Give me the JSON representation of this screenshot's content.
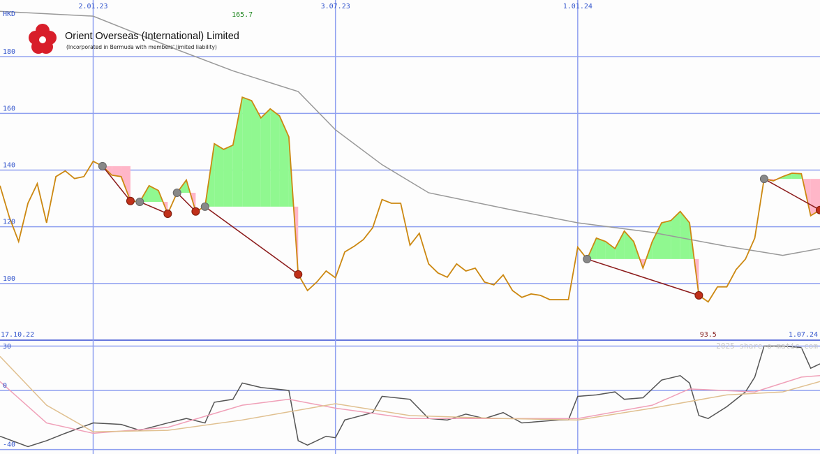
{
  "chart_data": {
    "type": "line",
    "title": "Orient Overseas (International) Limited",
    "subtitle": "(Incorporated in Bermuda with members' limited liability)",
    "currency": "HKD",
    "xlim": [
      0,
      88
    ],
    "xticks": [
      {
        "value": 10,
        "label": "2.01.23"
      },
      {
        "value": 36,
        "label": "3.07.23"
      },
      {
        "value": 62,
        "label": "1.01.24"
      }
    ],
    "date_range": [
      "17.10.22",
      "1.07.24"
    ],
    "ylim": [
      80,
      200
    ],
    "yticks": [
      100,
      120,
      140,
      160,
      180
    ],
    "grid": true,
    "high": 165.7,
    "low": 93.5,
    "series": [
      {
        "color": "#cc8811",
        "values": [
          134.5,
          123.4,
          114.8,
          128.3,
          135.2,
          121.4,
          137.7,
          139.7,
          137,
          137.7,
          143.1,
          141.4,
          138.2,
          137.7,
          129.1,
          128.8,
          134.5,
          132.8,
          124.6,
          132,
          136.5,
          125.4,
          127.1,
          149.3,
          147.3,
          148.8,
          165.7,
          164.5,
          158.4,
          161.6,
          159.1,
          151.7,
          103.2,
          97.5,
          100.5,
          104.4,
          102,
          111.1,
          113.1,
          115.5,
          119.7,
          129.6,
          128.3,
          128.3,
          113.5,
          117.7,
          106.9,
          103.7,
          102.2,
          106.9,
          104.4,
          105.4,
          100.5,
          99.5,
          103,
          97.5,
          95.1,
          96.3,
          95.8,
          94.3,
          94.3,
          94.3,
          112.8,
          108.6,
          116,
          114.8,
          112.3,
          118.5,
          114.8,
          105.4,
          114.8,
          121.4,
          122.2,
          125.4,
          121.4,
          95.8,
          93.5,
          98.8,
          98.8,
          104.9,
          108.6,
          116,
          136.9,
          136.2,
          137.7,
          138.9,
          138.7,
          123.9,
          125.9
        ]
      },
      {
        "color": "#999999",
        "x": [
          0,
          10,
          19,
          25,
          32,
          36,
          41,
          46,
          55,
          62,
          70,
          78,
          84,
          88
        ],
        "values": [
          196,
          194.3,
          182.5,
          175,
          167.7,
          154.2,
          141.9,
          132,
          125.9,
          121.4,
          118,
          113.1,
          109.9,
          112.3
        ]
      }
    ],
    "signals": [
      [
        11,
        14
      ],
      [
        15,
        18
      ],
      [
        19,
        21
      ],
      [
        22,
        32
      ],
      [
        63,
        75
      ],
      [
        82,
        88
      ]
    ],
    "signal_colors": {
      "above": "#90f890",
      "below": "#ffb6c8",
      "line": "#8b1a1a",
      "start": "#888888",
      "end": "#c0301a"
    },
    "oscillator": {
      "ylim": [
        -43,
        34
      ],
      "yticks": [
        30,
        0,
        -40
      ],
      "series": [
        {
          "color": "#555555",
          "x": [
            0,
            3,
            5,
            7,
            10,
            13,
            15,
            18,
            20,
            22,
            23,
            25,
            26,
            28,
            31,
            32,
            33,
            35,
            36,
            37,
            40,
            41,
            44,
            46,
            48,
            50,
            52,
            54,
            56,
            60,
            61,
            62,
            64,
            66,
            67,
            69,
            71,
            73,
            74,
            75,
            76,
            78,
            80,
            81,
            82,
            84,
            86,
            87,
            88
          ],
          "values": [
            -31,
            -38,
            -34,
            -29,
            -22,
            -23,
            -27,
            -22,
            -19,
            -22,
            -8,
            -6,
            5,
            2,
            0,
            -34,
            -37,
            -31,
            -32,
            -20,
            -15,
            -4,
            -6,
            -19,
            -20,
            -16,
            -19,
            -15,
            -22,
            -20,
            -20,
            -4,
            -3,
            -1,
            -6,
            -5,
            7,
            10,
            5,
            -17,
            -19,
            -11,
            -1,
            9,
            30,
            30,
            29,
            15,
            18
          ]
        },
        {
          "color": "#f0a0b8",
          "x": [
            0,
            5,
            10,
            18,
            26,
            31,
            36,
            44,
            54,
            62,
            70,
            74,
            81,
            86,
            88
          ],
          "values": [
            6,
            -22,
            -29,
            -25,
            -10,
            -6,
            -12,
            -19,
            -19,
            -19,
            -10,
            1,
            -1,
            9,
            10
          ]
        },
        {
          "color": "#e0c090",
          "x": [
            0,
            5,
            10,
            18,
            26,
            36,
            44,
            54,
            62,
            70,
            78,
            84,
            88
          ],
          "values": [
            23,
            -10,
            -28,
            -27,
            -20,
            -9,
            -17,
            -19,
            -20,
            -12,
            -3,
            -1,
            6
          ]
        }
      ]
    }
  },
  "watermark": "2025 share-o-matic.com"
}
